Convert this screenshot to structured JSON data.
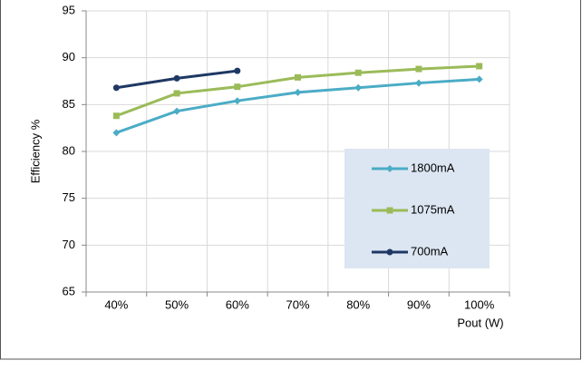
{
  "chart_data": {
    "type": "line",
    "y_label": "Efficiency %",
    "x_label": "Pout (W)",
    "categories": [
      "40%",
      "50%",
      "60%",
      "70%",
      "80%",
      "90%",
      "100%"
    ],
    "series": [
      {
        "name": "1800mA",
        "color": "#4bacc6",
        "marker": "diamond",
        "values": [
          82.0,
          84.3,
          85.4,
          86.3,
          86.8,
          87.3,
          87.7
        ]
      },
      {
        "name": "1075mA",
        "color": "#9bbb59",
        "marker": "square",
        "values": [
          83.8,
          86.2,
          86.9,
          87.9,
          88.4,
          88.8,
          89.1
        ]
      },
      {
        "name": "700mA",
        "color": "#1f3864",
        "marker": "circle",
        "values": [
          86.8,
          87.8,
          88.6,
          null,
          null,
          null,
          null
        ]
      }
    ],
    "ylim": [
      65,
      95
    ],
    "yticks": [
      65,
      70,
      75,
      80,
      85,
      90,
      95
    ],
    "grid": true
  }
}
